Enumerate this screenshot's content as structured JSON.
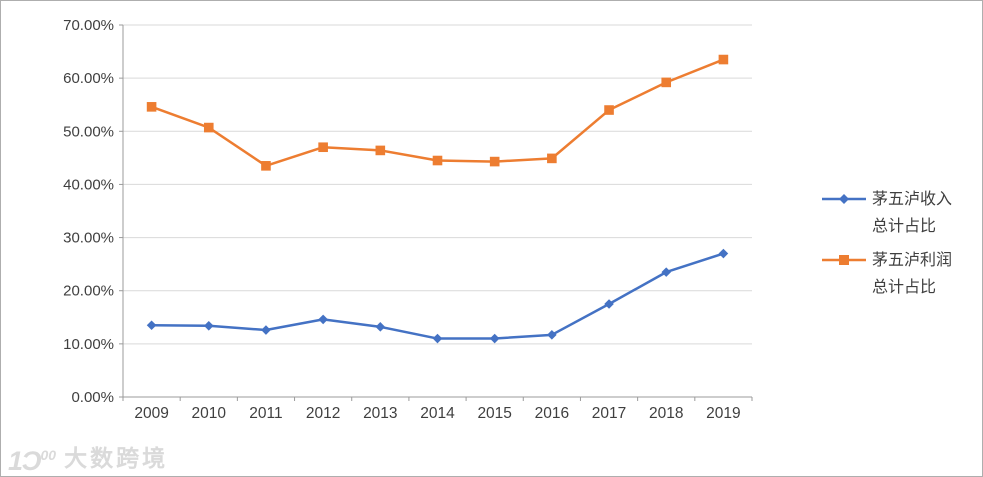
{
  "page": {
    "background": "#ffffff",
    "border_color": "#aeaeae"
  },
  "watermark": {
    "logo_main": "1Ɔ",
    "logo_sup": "00",
    "text": "大数跨境"
  },
  "chart_data": {
    "type": "line",
    "title": "",
    "xlabel": "",
    "ylabel": "",
    "categories": [
      "2009",
      "2010",
      "2011",
      "2012",
      "2013",
      "2014",
      "2015",
      "2016",
      "2017",
      "2018",
      "2019"
    ],
    "series": [
      {
        "name": "茅五泸收入总计占比",
        "legend_lines": [
          "茅五泸收入",
          "总计占比"
        ],
        "color": "#4472C4",
        "marker": "diamond",
        "values": [
          13.5,
          13.4,
          12.6,
          14.6,
          13.2,
          11.0,
          11.0,
          11.7,
          17.5,
          23.5,
          27.0
        ]
      },
      {
        "name": "茅五泸利润总计占比",
        "legend_lines": [
          "茅五泸利润",
          "总计占比"
        ],
        "color": "#ED7D31",
        "marker": "square",
        "values": [
          54.6,
          50.7,
          43.5,
          47.0,
          46.4,
          44.5,
          44.3,
          44.9,
          54.0,
          59.2,
          63.5
        ]
      }
    ],
    "ylim": [
      0,
      70
    ],
    "ytick_values": [
      0,
      10,
      20,
      30,
      40,
      50,
      60,
      70
    ],
    "ytick_labels": [
      "0.00%",
      "10.00%",
      "20.00%",
      "30.00%",
      "40.00%",
      "50.00%",
      "60.00%",
      "70.00%"
    ],
    "grid": true,
    "legend_position": "right",
    "axis_color": "#9b9b9b",
    "grid_color": "#d9d9d9",
    "text_color": "#3f3f3f"
  }
}
